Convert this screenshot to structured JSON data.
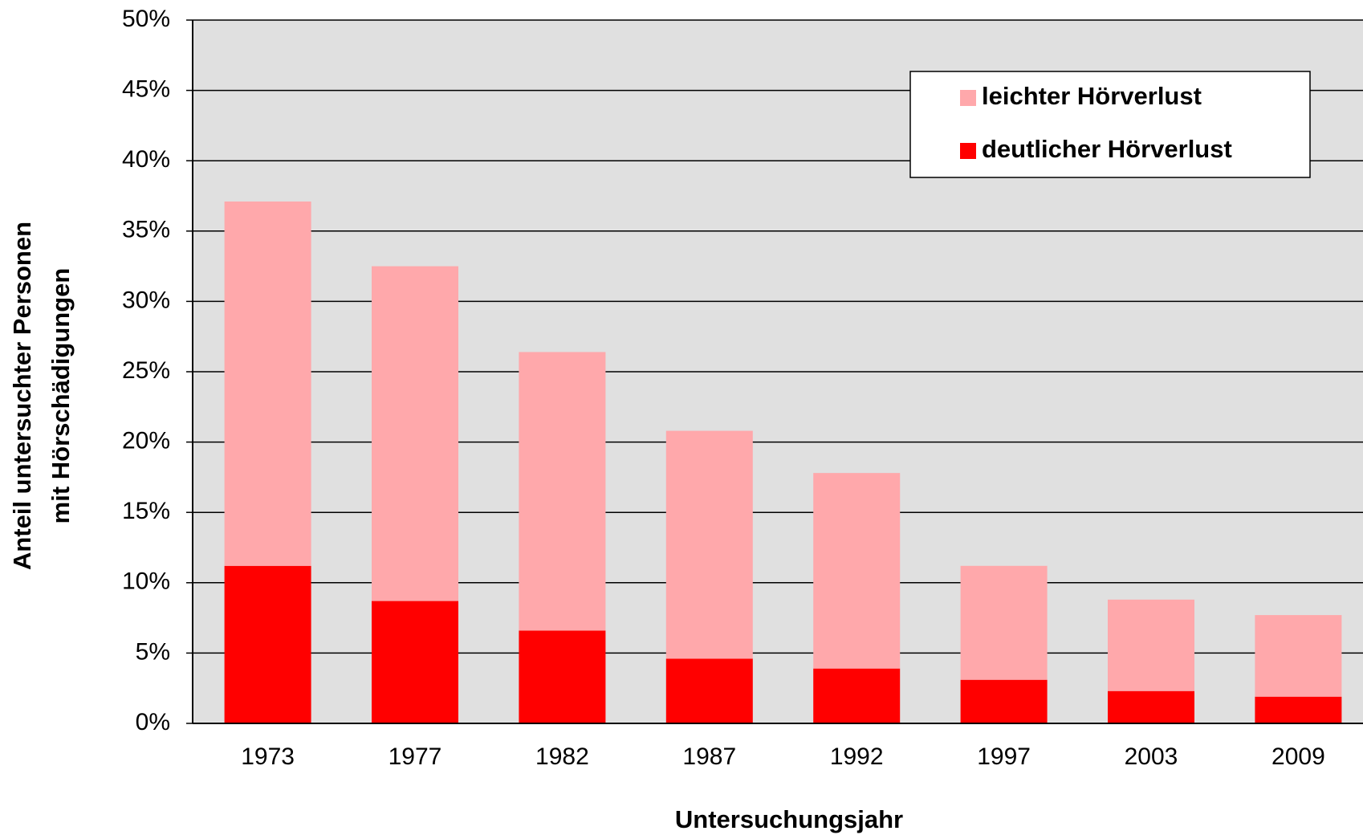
{
  "chart_data": {
    "type": "stacked_bar",
    "y_label": [
      "Anteil untersuchter Personen",
      "mit Hörschädigungen"
    ],
    "x_label": "Untersuchungsjahr",
    "categories": [
      "1973",
      "1977",
      "1982",
      "1987",
      "1992",
      "1997",
      "2003",
      "2009"
    ],
    "series": [
      {
        "name": "deutlicher Hörverlust",
        "color": "#ff0000",
        "values": [
          11.2,
          8.7,
          6.6,
          4.6,
          3.9,
          3.1,
          2.3,
          1.9
        ]
      },
      {
        "name": "leichter Hörverlust",
        "color": "#ffa8ab",
        "values": [
          25.9,
          23.8,
          19.8,
          16.2,
          13.9,
          8.1,
          6.5,
          5.8
        ]
      }
    ],
    "ylim": [
      0,
      50
    ],
    "yticks": [
      {
        "value": 0,
        "label": "0%"
      },
      {
        "value": 5,
        "label": "5%"
      },
      {
        "value": 10,
        "label": "10%"
      },
      {
        "value": 15,
        "label": "15%"
      },
      {
        "value": 20,
        "label": "20%"
      },
      {
        "value": 25,
        "label": "25%"
      },
      {
        "value": 30,
        "label": "30%"
      },
      {
        "value": 35,
        "label": "35%"
      },
      {
        "value": 40,
        "label": "40%"
      },
      {
        "value": 45,
        "label": "45%"
      },
      {
        "value": 50,
        "label": "50%"
      }
    ],
    "grid": true,
    "legend": "top-right"
  }
}
